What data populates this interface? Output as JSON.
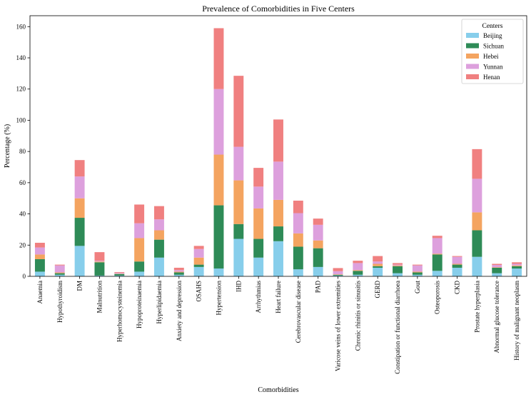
{
  "chart_data": {
    "type": "bar",
    "stacked": true,
    "title": "Prevalence of Comorbidities in Five Centers",
    "xlabel": "Comorbidities",
    "ylabel": "Percentage (%)",
    "ylim": [
      0,
      167
    ],
    "yticks": [
      0,
      20,
      40,
      60,
      80,
      100,
      120,
      140,
      160
    ],
    "legend_title": "Centers",
    "legend_position": "top-right",
    "categories": [
      "Anaemia",
      "Hypothyroidism",
      "DM",
      "Malnutrition",
      "Hyperhomocysteinemia",
      "Hypoproteinaemia",
      "Hyperlipidaemia",
      "Anxiety and depression",
      "OSAHS",
      "Hypertension",
      "IHD",
      "Arrhythmias",
      "Heart failure",
      "Cerebrovascular disease",
      "PAD",
      "Varicose veins of lower extremities",
      "Chronic rhinitis or sinusitis",
      "GERD",
      "Constipation or functional diarrhoea",
      "Gout",
      "Osteoporosis",
      "CKD",
      "Prostate hyperplasia",
      "Abnormal glucose tolerance",
      "History of malignant neoplasm"
    ],
    "series": [
      {
        "name": "Beijing",
        "color": "#87ceeb",
        "values": [
          3,
          1,
          19.5,
          0.5,
          0.5,
          3,
          12,
          1,
          6,
          5,
          24,
          12,
          22.5,
          4.5,
          6,
          0.5,
          1,
          5.5,
          2,
          1,
          3.5,
          5.5,
          12.5,
          2,
          5
        ]
      },
      {
        "name": "Sichuan",
        "color": "#2e8b57",
        "values": [
          8,
          1,
          18,
          8.5,
          1,
          6.5,
          11.5,
          1.5,
          1.5,
          40.5,
          9.5,
          12,
          9.5,
          14.5,
          12,
          0.5,
          2.5,
          1,
          4.5,
          1.5,
          10.5,
          2,
          17,
          3.5,
          1.5
        ]
      },
      {
        "name": "Hebei",
        "color": "#f4a460",
        "values": [
          3,
          0.5,
          12.5,
          0.5,
          0.2,
          15,
          6,
          0.5,
          4.5,
          32.5,
          28,
          19.5,
          17,
          8.5,
          5,
          0.3,
          0.5,
          1.5,
          0.5,
          0.5,
          0.5,
          0.5,
          11.5,
          0.3,
          0.5
        ]
      },
      {
        "name": "Yunnan",
        "color": "#dda0dd",
        "values": [
          4.5,
          4.5,
          14,
          0.5,
          0.5,
          9.5,
          7,
          1,
          5.5,
          42,
          21.5,
          14,
          24.5,
          13,
          10,
          2,
          4.5,
          1.5,
          0.5,
          4,
          10,
          4.5,
          21.5,
          1.5,
          1
        ]
      },
      {
        "name": "Henan",
        "color": "#f08080",
        "values": [
          3,
          0.5,
          10.5,
          5.5,
          0.5,
          12,
          8.5,
          1.5,
          2,
          39,
          45.5,
          12,
          27,
          8,
          4,
          2,
          1.5,
          3.5,
          1,
          0.5,
          1.5,
          0.5,
          19,
          0.7,
          1
        ]
      }
    ]
  }
}
